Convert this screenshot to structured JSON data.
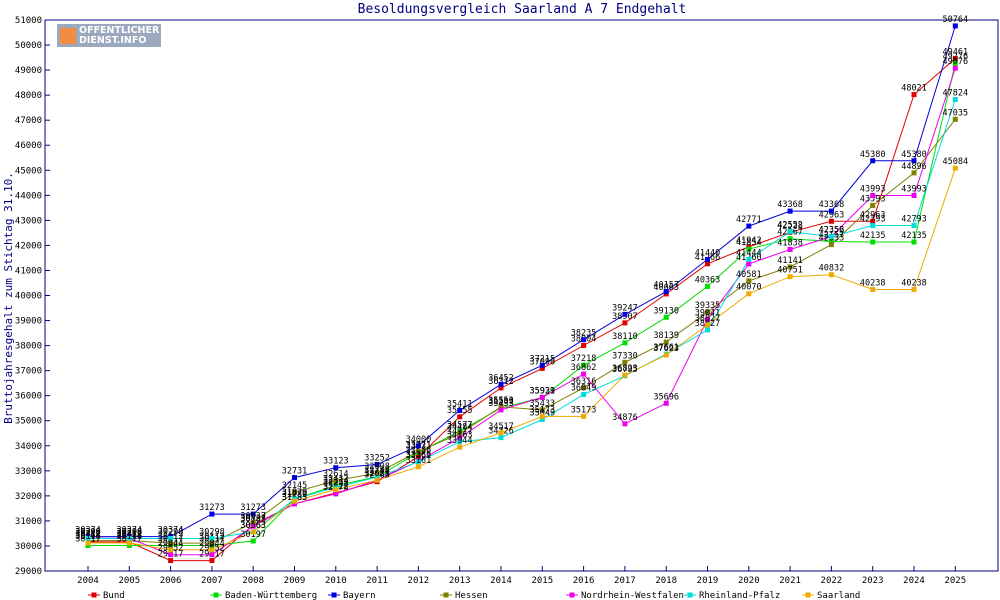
{
  "logo": {
    "line1": "OFFENTLICHER",
    "line2": "DIENST.INFO"
  },
  "chart_data": {
    "type": "line",
    "title": "Besoldungsvergleich Saarland A 7 Endgehalt",
    "ylabel": "Bruttojahresgehalt zum Stichtag 31.10.",
    "xlabel": "",
    "ylim": [
      29000,
      51000
    ],
    "y_ticks": [
      29000,
      30000,
      31000,
      32000,
      33000,
      34000,
      35000,
      36000,
      37000,
      38000,
      39000,
      40000,
      41000,
      42000,
      43000,
      44000,
      45000,
      46000,
      47000,
      48000,
      49000,
      50000,
      51000
    ],
    "categories": [
      "2004",
      "2005",
      "2006",
      "2007",
      "2008",
      "2009",
      "2010",
      "2011",
      "2012",
      "2013",
      "2014",
      "2015",
      "2016",
      "2017",
      "2018",
      "2019",
      "2020",
      "2021",
      "2022",
      "2023",
      "2024",
      "2025"
    ],
    "legend_position": "bottom",
    "grid": false,
    "series": [
      {
        "name": "Bund",
        "color": "#dd0000",
        "values": [
          30163,
          30163,
          29417,
          29417,
          30837,
          31683,
          32122,
          32565,
          33556,
          35155,
          36312,
          37090,
          38004,
          38907,
          40063,
          41266,
          41942,
          42528,
          42963,
          42963,
          48021,
          49461
        ]
      },
      {
        "name": "Baden-Württemberg",
        "color": "#00dd00",
        "values": [
          30017,
          30017,
          30017,
          30017,
          30197,
          31873,
          32412,
          32757,
          33731,
          34577,
          35509,
          35929,
          37218,
          38110,
          39130,
          40363,
          41854,
          42267,
          42157,
          42135,
          42135,
          49276
        ]
      },
      {
        "name": "Bayern",
        "color": "#0000dd",
        "values": [
          30374,
          30374,
          30374,
          31273,
          31273,
          32731,
          33123,
          33252,
          34000,
          35411,
          36452,
          37215,
          38235,
          39247,
          40157,
          41440,
          42771,
          43368,
          43368,
          45380,
          45380,
          50764
        ]
      },
      {
        "name": "Hessen",
        "color": "#808000",
        "values": [
          30212,
          30212,
          30112,
          30112,
          30937,
          32145,
          32614,
          32908,
          33771,
          34484,
          35553,
          35433,
          36316,
          37330,
          38139,
          39335,
          40581,
          41141,
          42033,
          43593,
          44896,
          47035
        ]
      },
      {
        "name": "Nordrhein-Westfalen",
        "color": "#ee00ee",
        "values": [
          30306,
          30306,
          29652,
          29652,
          30788,
          31685,
          32078,
          32628,
          33386,
          34317,
          35433,
          35931,
          36862,
          34876,
          35696,
          39041,
          41260,
          41838,
          42356,
          43993,
          43993,
          49076
        ]
      },
      {
        "name": "Rheinland-Pfalz",
        "color": "#00dddd",
        "values": [
          30298,
          30298,
          30298,
          30298,
          30563,
          31879,
          32334,
          32744,
          33361,
          34163,
          34326,
          35049,
          36049,
          36795,
          37661,
          38627,
          41444,
          42552,
          42352,
          42793,
          42793,
          47824
        ]
      },
      {
        "name": "Saarland",
        "color": "#eeaa00",
        "values": [
          30116,
          30116,
          29844,
          29844,
          30563,
          31789,
          32253,
          32627,
          33161,
          33944,
          34517,
          35173,
          35173,
          36823,
          37623,
          38827,
          40070,
          40751,
          40832,
          40238,
          40238,
          45084
        ]
      }
    ]
  }
}
